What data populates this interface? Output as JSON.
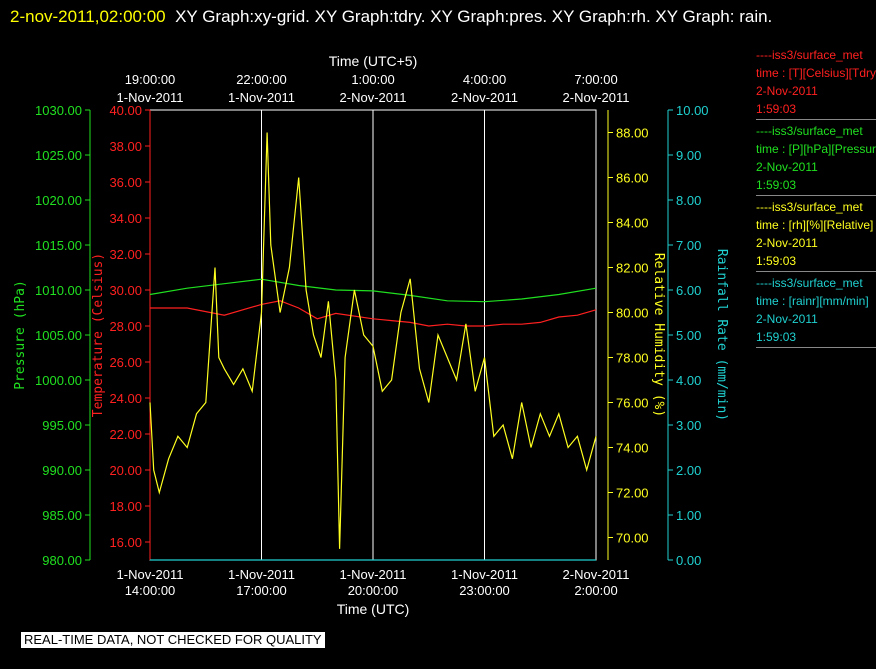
{
  "header": {
    "timestamp": "2-nov-2011,02:00:00",
    "title": "XY Graph:xy-grid.  XY Graph:tdry.  XY Graph:pres.  XY Graph:rh.  XY Graph: rain."
  },
  "footer": {
    "notice": "REAL-TIME DATA, NOT CHECKED FOR QUALITY"
  },
  "colors": {
    "background": "#000000",
    "grid": "#ffffff",
    "temperature": "#ff2020",
    "pressure": "#20e020",
    "humidity": "#ffff20",
    "rain": "#20d0d0"
  },
  "legend": [
    {
      "name": "----iss3/surface_met",
      "units": "time : [T][Celsius][Tdry]",
      "date": "2-Nov-2011",
      "time": "1:59:03",
      "color": "#ff2020"
    },
    {
      "name": "----iss3/surface_met",
      "units": "time : [P][hPa][Pressure]",
      "date": "2-Nov-2011",
      "time": "1:59:03",
      "color": "#20e020"
    },
    {
      "name": "----iss3/surface_met",
      "units": "time : [rh][%][Relative]",
      "date": "2-Nov-2011",
      "time": "1:59:03",
      "color": "#ffff20"
    },
    {
      "name": "----iss3/surface_met",
      "units": "time : [rainr][mm/min]",
      "date": "2-Nov-2011",
      "time": "1:59:03",
      "color": "#20d0d0"
    }
  ],
  "chart_data": {
    "type": "line",
    "grid": true,
    "top_axis": {
      "label": "Time (UTC+5)",
      "ticks": [
        {
          "time": "19:00:00",
          "date": "1-Nov-2011"
        },
        {
          "time": "22:00:00",
          "date": "1-Nov-2011"
        },
        {
          "time": "1:00:00",
          "date": "2-Nov-2011"
        },
        {
          "time": "4:00:00",
          "date": "2-Nov-2011"
        },
        {
          "time": "7:00:00",
          "date": "2-Nov-2011"
        }
      ]
    },
    "bottom_axis": {
      "label": "Time (UTC)",
      "range_hours": [
        14,
        26
      ],
      "ticks": [
        {
          "date": "1-Nov-2011",
          "time": "14:00:00"
        },
        {
          "date": "1-Nov-2011",
          "time": "17:00:00"
        },
        {
          "date": "1-Nov-2011",
          "time": "20:00:00"
        },
        {
          "date": "1-Nov-2011",
          "time": "23:00:00"
        },
        {
          "date": "2-Nov-2011",
          "time": "2:00:00"
        }
      ]
    },
    "y_axes": [
      {
        "id": "pressure",
        "label": "Pressure (hPa)",
        "color": "#20e020",
        "range": [
          980,
          1030
        ],
        "ticks": [
          "980.00",
          "985.00",
          "990.00",
          "995.00",
          "1000.00",
          "1005.00",
          "1010.00",
          "1015.00",
          "1020.00",
          "1025.00",
          "1030.00"
        ]
      },
      {
        "id": "temperature",
        "label": "Temperature (Celsius)",
        "color": "#ff2020",
        "range": [
          15,
          40
        ],
        "ticks": [
          "16.00",
          "18.00",
          "20.00",
          "22.00",
          "24.00",
          "26.00",
          "28.00",
          "30.00",
          "32.00",
          "34.00",
          "36.00",
          "38.00",
          "40.00"
        ]
      },
      {
        "id": "humidity",
        "label": "Relative Humidity (%)",
        "color": "#ffff20",
        "range": [
          69,
          89
        ],
        "ticks": [
          "70.00",
          "72.00",
          "74.00",
          "76.00",
          "78.00",
          "80.00",
          "82.00",
          "84.00",
          "86.00",
          "88.00"
        ]
      },
      {
        "id": "rain",
        "label": "Rainfall Rate (mm/min)",
        "color": "#20d0d0",
        "range": [
          0,
          10
        ],
        "ticks": [
          "0.00",
          "1.00",
          "2.00",
          "3.00",
          "4.00",
          "5.00",
          "6.00",
          "7.00",
          "8.00",
          "9.00",
          "10.00"
        ]
      }
    ],
    "series": [
      {
        "axis": "pressure",
        "x_hours": [
          14,
          15,
          16,
          17,
          18,
          19,
          20,
          21,
          22,
          23,
          24,
          25,
          26
        ],
        "values": [
          1009.5,
          1010.2,
          1010.7,
          1011.2,
          1010.5,
          1010.0,
          1009.9,
          1009.4,
          1008.8,
          1008.7,
          1009.0,
          1009.5,
          1010.2
        ]
      },
      {
        "axis": "temperature",
        "x_hours": [
          14,
          15,
          16,
          17,
          17.5,
          18,
          18.5,
          19,
          20,
          20.5,
          21,
          21.5,
          22,
          22.5,
          23,
          23.5,
          24,
          24.5,
          25,
          25.5,
          26
        ],
        "values": [
          29.0,
          29.0,
          28.6,
          29.2,
          29.4,
          29.0,
          28.4,
          28.7,
          28.4,
          28.3,
          28.2,
          28.0,
          28.1,
          28.0,
          28.0,
          28.1,
          28.1,
          28.2,
          28.5,
          28.6,
          28.9
        ]
      },
      {
        "axis": "humidity",
        "x_hours": [
          14,
          14.1,
          14.25,
          14.5,
          14.75,
          15,
          15.25,
          15.5,
          15.75,
          15.85,
          16,
          16.25,
          16.5,
          16.75,
          17,
          17.15,
          17.25,
          17.5,
          17.75,
          18,
          18.2,
          18.4,
          18.6,
          18.8,
          19,
          19.1,
          19.25,
          19.5,
          19.75,
          20,
          20.25,
          20.5,
          20.75,
          21,
          21.25,
          21.5,
          21.75,
          22,
          22.25,
          22.5,
          22.75,
          23,
          23.25,
          23.5,
          23.75,
          24,
          24.25,
          24.5,
          24.75,
          25,
          25.25,
          25.5,
          25.75,
          26
        ],
        "values": [
          76.0,
          73.0,
          72.0,
          73.5,
          74.5,
          74.0,
          75.5,
          76.0,
          82.0,
          78.0,
          77.5,
          76.8,
          77.5,
          76.5,
          80.0,
          88.0,
          83.0,
          80.0,
          82.0,
          86.0,
          81.0,
          79.0,
          78.0,
          80.5,
          77.0,
          69.5,
          78.0,
          81.0,
          79.0,
          78.5,
          76.5,
          77.0,
          80.0,
          81.5,
          77.5,
          76.0,
          79.0,
          78.0,
          77.0,
          79.5,
          76.5,
          78.0,
          74.5,
          75.0,
          73.5,
          76.0,
          74.0,
          75.5,
          74.5,
          75.5,
          74.0,
          74.5,
          73.0,
          74.5
        ]
      },
      {
        "axis": "rain",
        "x_hours": [
          14,
          26
        ],
        "values": [
          0.0,
          0.0
        ]
      }
    ]
  }
}
